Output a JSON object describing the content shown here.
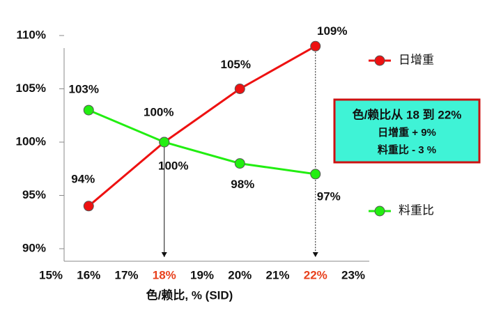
{
  "chart_data": {
    "type": "line",
    "x": [
      16,
      18,
      20,
      22
    ],
    "xlabel": "色/赖比, % (SID)",
    "series": [
      {
        "name": "日增重",
        "color": "#ee1111",
        "values": [
          94,
          100,
          105,
          109
        ],
        "value_labels": [
          "94%",
          "100%",
          "105%",
          "109%"
        ]
      },
      {
        "name": "料重比",
        "color": "#22ee11",
        "values": [
          103,
          100,
          98,
          97
        ],
        "value_labels": [
          "103%",
          "100%",
          "98%",
          "97%"
        ]
      }
    ],
    "xlim": [
      15,
      23
    ],
    "xticks": [
      {
        "value": 15,
        "label": "15%"
      },
      {
        "value": 16,
        "label": "16%"
      },
      {
        "value": 17,
        "label": "17%"
      },
      {
        "value": 18,
        "label": "18%"
      },
      {
        "value": 19,
        "label": "19%"
      },
      {
        "value": 20,
        "label": "20%"
      },
      {
        "value": 21,
        "label": "21%"
      },
      {
        "value": 22,
        "label": "22%"
      },
      {
        "value": 23,
        "label": "23%"
      }
    ],
    "ylim": [
      90,
      110
    ],
    "yticks": [
      {
        "value": 90,
        "label": "90%"
      },
      {
        "value": 95,
        "label": "95%"
      },
      {
        "value": 100,
        "label": "100%"
      },
      {
        "value": 105,
        "label": "105%"
      },
      {
        "value": 110,
        "label": "110%"
      }
    ],
    "guides": [
      {
        "x": 18,
        "dashed": false,
        "color": "#e8401c"
      },
      {
        "x": 22,
        "dashed": true,
        "color": "#e8401c"
      }
    ],
    "annotation": {
      "lines": [
        "色/赖比从 18 到 22%",
        "日增重  + 9%",
        "料重比  - 3 %"
      ],
      "fill": "#3ff3d6",
      "border": "#cc1111"
    }
  }
}
